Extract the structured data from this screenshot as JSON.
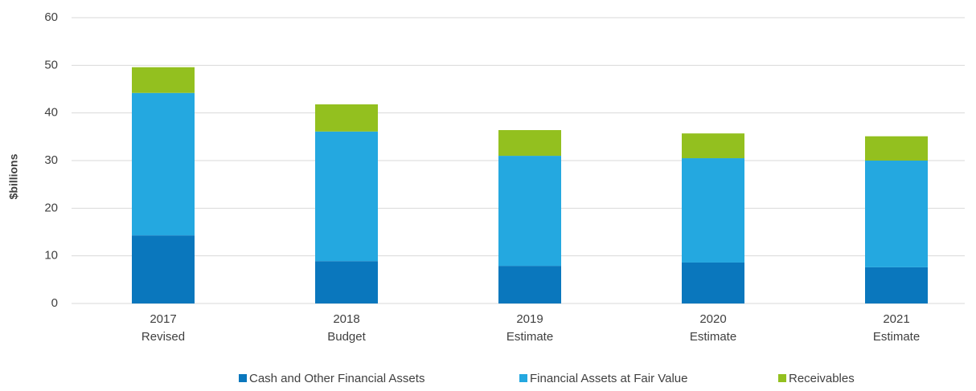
{
  "chart_data": {
    "type": "stacked_bar",
    "ylabel": "$billions",
    "categories": [
      [
        "2017",
        "Revised"
      ],
      [
        "2018",
        "Budget"
      ],
      [
        "2019",
        "Estimate"
      ],
      [
        "2020",
        "Estimate"
      ],
      [
        "2021",
        "Estimate"
      ]
    ],
    "series": [
      {
        "name": "Cash and Other Financial Assets",
        "color": "#0a77bd",
        "values": [
          14.3,
          8.9,
          7.9,
          8.6,
          7.6
        ]
      },
      {
        "name": "Financial Assets at Fair Value",
        "color": "#24a8e0",
        "values": [
          29.9,
          27.2,
          23.1,
          21.9,
          22.4
        ]
      },
      {
        "name": "Receivables",
        "color": "#93c01f",
        "values": [
          5.4,
          5.7,
          5.4,
          5.2,
          5.1
        ]
      }
    ],
    "ylim": [
      0,
      60
    ],
    "yticks": [
      0,
      10,
      20,
      30,
      40,
      50,
      60
    ],
    "grid": true,
    "legend": "bottom"
  }
}
